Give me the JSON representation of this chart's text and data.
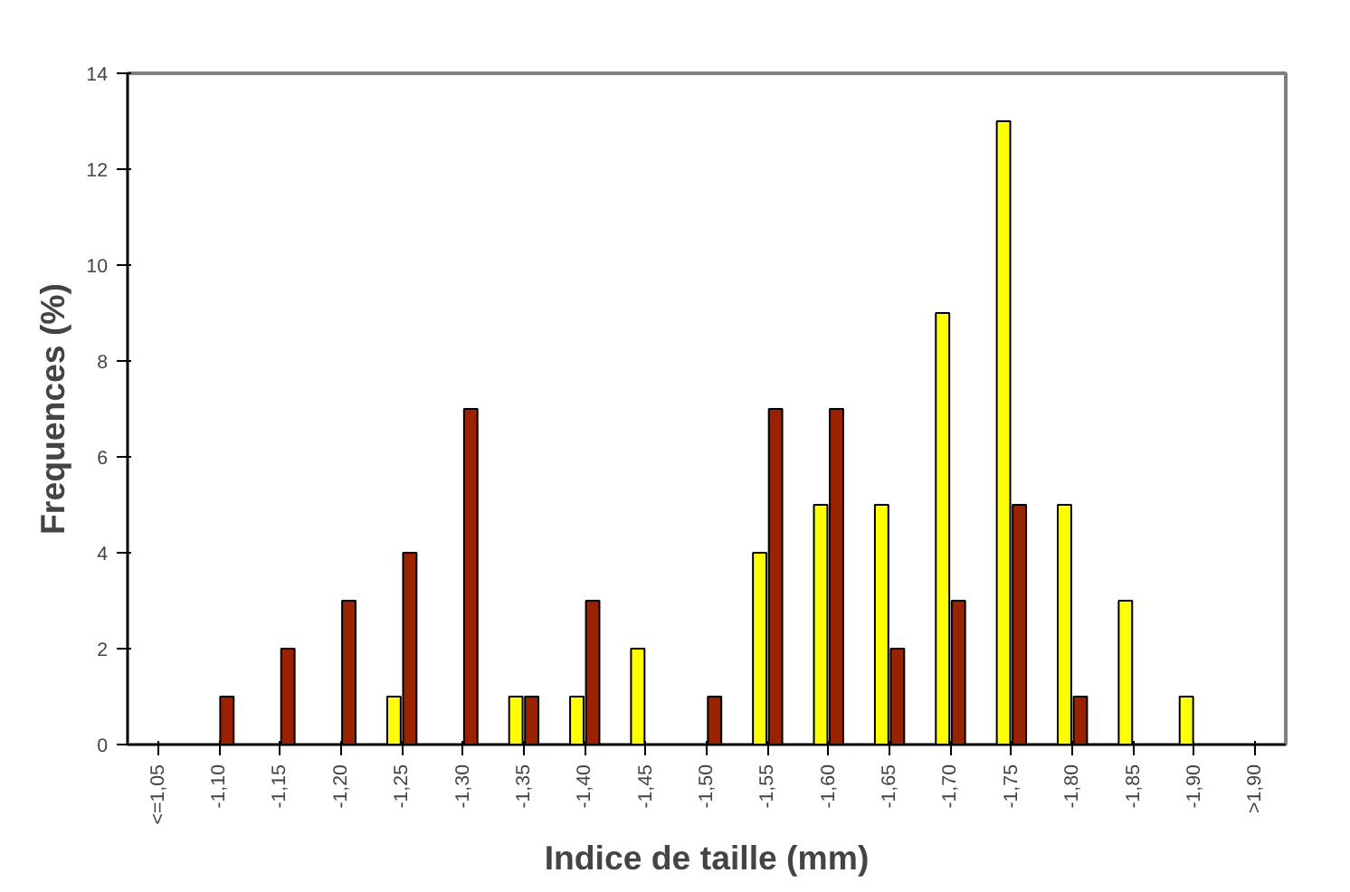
{
  "chart_data": {
    "type": "bar",
    "xlabel": "Indice de taille (mm)",
    "ylabel": "Frequences (%)",
    "categories": [
      "<=1,05",
      "-1,10",
      "-1,15",
      "-1,20",
      "-1,25",
      "-1,30",
      "-1,35",
      "-1,40",
      "-1,45",
      "-1,50",
      "-1,55",
      "-1,60",
      "-1,65",
      "-1,70",
      "-1,75",
      "-1,80",
      "-1,85",
      "-1,90",
      ">1,90"
    ],
    "series": [
      {
        "color": "#ffff00",
        "values": [
          null,
          null,
          null,
          null,
          1,
          null,
          1,
          1,
          2,
          null,
          4,
          5,
          5,
          9,
          13,
          5,
          3,
          1,
          null
        ]
      },
      {
        "color": "#992200",
        "values": [
          null,
          1,
          2,
          3,
          4,
          7,
          1,
          3,
          null,
          1,
          7,
          7,
          2,
          3,
          5,
          1,
          null,
          null,
          null
        ]
      }
    ],
    "ylim": [
      0,
      14
    ],
    "yticks": [
      0,
      2,
      4,
      6,
      8,
      10,
      12,
      14
    ],
    "grid": false
  }
}
